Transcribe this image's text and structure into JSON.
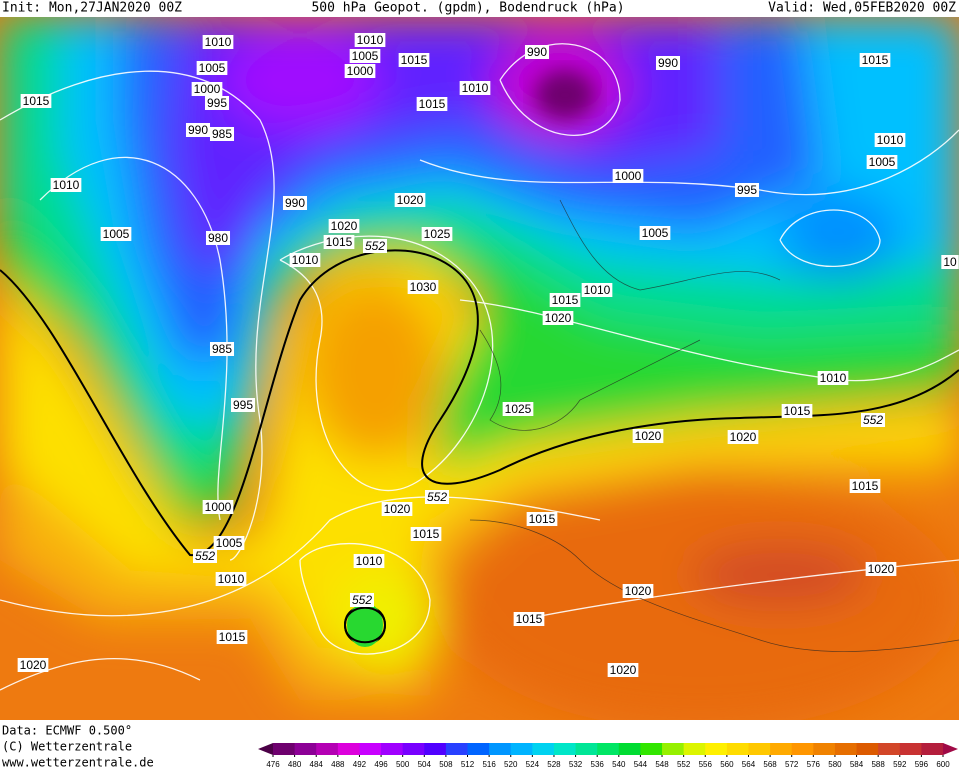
{
  "header": {
    "init": "Init: Mon,27JAN2020 00Z",
    "title": "500 hPa Geopot. (gpdm), Bodendruck (hPa)",
    "valid": "Valid: Wed,05FEB2020 00Z"
  },
  "footer": {
    "data": "Data: ECMWF  0.500°",
    "copyright": "(C) Wetterzentrale",
    "website": "www.wetterzentrale.de"
  },
  "isobar_labels": [
    1010,
    1005,
    1000,
    995,
    990,
    985,
    1015,
    1010,
    1005,
    980,
    990,
    1020,
    1015,
    1010,
    552,
    1025,
    1020,
    1010,
    1005,
    1000,
    1015,
    1015,
    1010,
    990,
    990,
    1000,
    995,
    1005,
    1015,
    1010,
    1005,
    10,
    1030,
    1010,
    1015,
    1020,
    985,
    995,
    1025,
    1010,
    1015,
    552,
    1020,
    1020,
    1015,
    552,
    1000,
    1020,
    1015,
    1015,
    1005,
    552,
    1010,
    1010,
    552,
    1020,
    1020,
    1015,
    1015,
    1020,
    1020
  ],
  "colorbar": {
    "ticks": [
      476,
      480,
      484,
      488,
      492,
      496,
      500,
      504,
      508,
      512,
      516,
      520,
      524,
      528,
      532,
      536,
      540,
      544,
      548,
      552,
      556,
      560,
      564,
      568,
      572,
      576,
      580,
      584,
      588,
      592,
      596,
      600
    ],
    "colors": [
      "#4b0046",
      "#6e006e",
      "#8c0096",
      "#b400b4",
      "#dc00dc",
      "#c800ff",
      "#a000ff",
      "#7800ff",
      "#5000ff",
      "#2840ff",
      "#0064ff",
      "#0096ff",
      "#00b4ff",
      "#00d2f0",
      "#00e6c8",
      "#00e696",
      "#00e664",
      "#00dc32",
      "#32e600",
      "#96f000",
      "#dcf500",
      "#fff000",
      "#ffdc00",
      "#ffc800",
      "#ffaa00",
      "#ff9600",
      "#f08200",
      "#e66e00",
      "#dc5a00",
      "#d24628",
      "#c83232",
      "#b41e3c",
      "#a00a46"
    ]
  }
}
